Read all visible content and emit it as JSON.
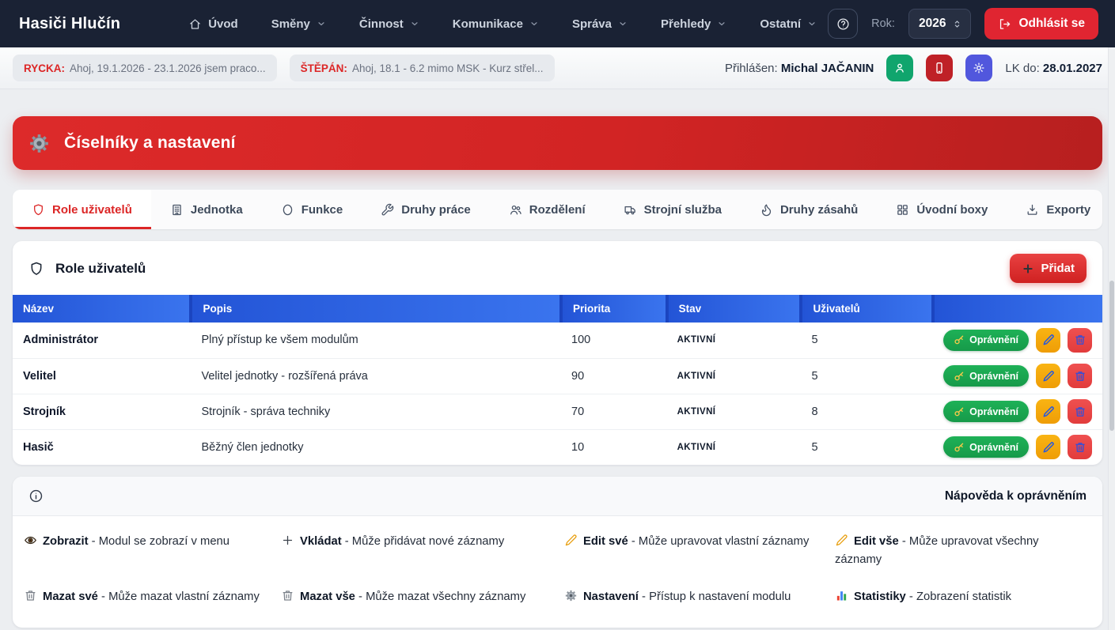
{
  "navbar": {
    "brand": "Hasiči Hlučín",
    "items": [
      {
        "label": "Úvod",
        "icon": "home-icon",
        "dropdown": false
      },
      {
        "label": "Směny",
        "dropdown": true
      },
      {
        "label": "Činnost",
        "dropdown": true
      },
      {
        "label": "Komunikace",
        "dropdown": true
      },
      {
        "label": "Správa",
        "dropdown": true
      },
      {
        "label": "Přehledy",
        "dropdown": true
      },
      {
        "label": "Ostatní",
        "dropdown": true
      }
    ],
    "year_label": "Rok:",
    "year_value": "2026",
    "logout_label": "Odhlásit se"
  },
  "infobar": {
    "messages": [
      {
        "author": "RYCKA:",
        "text": "Ahoj, 19.1.2026 - 23.1.2026 jsem praco..."
      },
      {
        "author": "ŠTĚPÁN:",
        "text": "Ahoj, 18.1 - 6.2 mimo MSK - Kurz střel..."
      }
    ],
    "logged_in_label": "Přihlášen:",
    "logged_in_user": "Michal JAČANIN",
    "lk_label": "LK do:",
    "lk_date": "28.01.2027"
  },
  "page": {
    "banner_title": "Číselníky a nastavení",
    "tabs": [
      {
        "label": "Role uživatelů",
        "icon": "shield-icon",
        "active": true
      },
      {
        "label": "Jednotka",
        "icon": "building-icon",
        "active": false
      },
      {
        "label": "Funkce",
        "icon": "ring-icon",
        "active": false
      },
      {
        "label": "Druhy práce",
        "icon": "wrench-icon",
        "active": false
      },
      {
        "label": "Rozdělení",
        "icon": "users-icon",
        "active": false
      },
      {
        "label": "Strojní služba",
        "icon": "truck-icon",
        "active": false
      },
      {
        "label": "Druhy zásahů",
        "icon": "flame-icon",
        "active": false
      },
      {
        "label": "Úvodní boxy",
        "icon": "grid-icon",
        "active": false
      },
      {
        "label": "Exporty",
        "icon": "download-icon",
        "active": false
      }
    ]
  },
  "roles_card": {
    "title": "Role uživatelů",
    "add_button": "Přidat",
    "columns": [
      "Název",
      "Popis",
      "Priorita",
      "Stav",
      "Uživatelů",
      ""
    ],
    "permissions_button": "Oprávnění",
    "rows": [
      {
        "name": "Administrátor",
        "desc": "Plný přístup ke všem modulům",
        "priority": "100",
        "status": "AKTIVNÍ",
        "users": "5"
      },
      {
        "name": "Velitel",
        "desc": "Velitel jednotky - rozšířená práva",
        "priority": "90",
        "status": "AKTIVNÍ",
        "users": "5"
      },
      {
        "name": "Strojník",
        "desc": "Strojník - správa techniky",
        "priority": "70",
        "status": "AKTIVNÍ",
        "users": "8"
      },
      {
        "name": "Hasič",
        "desc": "Běžný člen jednotky",
        "priority": "10",
        "status": "AKTIVNÍ",
        "users": "5"
      }
    ]
  },
  "help_card": {
    "title": "Nápověda k oprávněním",
    "items": [
      {
        "icon": "eye-icon",
        "term": "Zobrazit",
        "desc": "Modul se zobrazí v menu"
      },
      {
        "icon": "plus-icon",
        "term": "Vkládat",
        "desc": "Může přidávat nové záznamy"
      },
      {
        "icon": "pencil-icon",
        "term": "Edit své",
        "desc": "Může upravovat vlastní záznamy"
      },
      {
        "icon": "pencil-icon",
        "term": "Edit vše",
        "desc": "Může upravovat všechny záznamy"
      },
      {
        "icon": "trash-icon",
        "term": "Mazat své",
        "desc": "Může mazat vlastní záznamy"
      },
      {
        "icon": "trash-icon",
        "term": "Mazat vše",
        "desc": "Může mazat všechny záznamy"
      },
      {
        "icon": "gear-icon",
        "term": "Nastavení",
        "desc": "Přístup k nastavení modulu"
      },
      {
        "icon": "stats-icon",
        "term": "Statistiky",
        "desc": "Zobrazení statistik"
      }
    ]
  },
  "colors": {
    "navbar_bg": "#1a2234",
    "accent_red": "#dc2626",
    "table_header_blue": "#2f63e2",
    "success_green": "#16a34a",
    "warn_amber": "#f59e0b",
    "indigo": "#5157dd",
    "page_bg": "#eceef1"
  }
}
